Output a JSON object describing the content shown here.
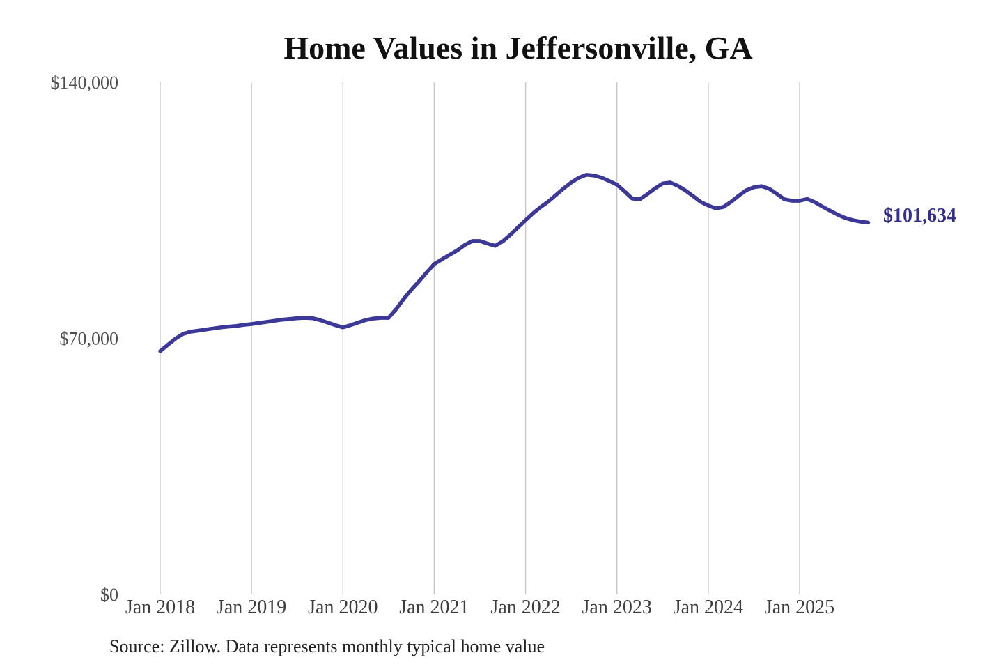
{
  "title": "Home Values in Jeffersonville, GA",
  "source_note": "Source: Zillow. Data represents monthly typical home value",
  "end_label": "$101,634",
  "colors": {
    "line": "#3c3897",
    "end_label": "#353090",
    "grid": "#c8c8c8",
    "x_tick_label": "#3d3d3d",
    "y_tick_label": "#4d4d4d",
    "title": "#111111",
    "source": "#222222",
    "background": "#ffffff"
  },
  "chart_data": {
    "type": "line",
    "title": "Home Values in Jeffersonville, GA",
    "xlabel": "",
    "ylabel": "",
    "ylim": [
      0,
      140000
    ],
    "grid": "vertical-only",
    "legend": "none",
    "x_start": "Jan 2018",
    "x_end": "Oct 2025",
    "x_tick_labels": [
      "Jan 2018",
      "Jan 2019",
      "Jan 2020",
      "Jan 2021",
      "Jan 2022",
      "Jan 2023",
      "Jan 2024",
      "Jan 2025"
    ],
    "y_ticks": [
      {
        "label": "$0",
        "value": 0
      },
      {
        "label": "$70,000",
        "value": 70000
      },
      {
        "label": "$140,000",
        "value": 140000
      }
    ],
    "final_value": 101634,
    "final_value_label": "$101,634",
    "series": [
      {
        "name": "Monthly typical home value",
        "values": [
          66500,
          68200,
          69900,
          71200,
          71800,
          72100,
          72400,
          72700,
          73000,
          73200,
          73400,
          73700,
          73900,
          74200,
          74500,
          74800,
          75100,
          75300,
          75500,
          75600,
          75500,
          75000,
          74300,
          73600,
          73000,
          73600,
          74300,
          75000,
          75400,
          75600,
          75600,
          78000,
          80800,
          83300,
          85600,
          88000,
          90300,
          91600,
          92800,
          94000,
          95500,
          96600,
          96600,
          95900,
          95300,
          96500,
          98300,
          100300,
          102300,
          104200,
          105900,
          107400,
          109200,
          111000,
          112600,
          113900,
          114700,
          114500,
          113900,
          113000,
          112000,
          110200,
          108200,
          108000,
          109400,
          111000,
          112300,
          112600,
          111700,
          110400,
          108900,
          107300,
          106300,
          105500,
          105900,
          107300,
          109000,
          110500,
          111300,
          111600,
          110900,
          109500,
          108000,
          107600,
          107600,
          108100,
          107200,
          106000,
          104900,
          103800,
          102900,
          102300,
          101900,
          101634
        ]
      }
    ]
  }
}
